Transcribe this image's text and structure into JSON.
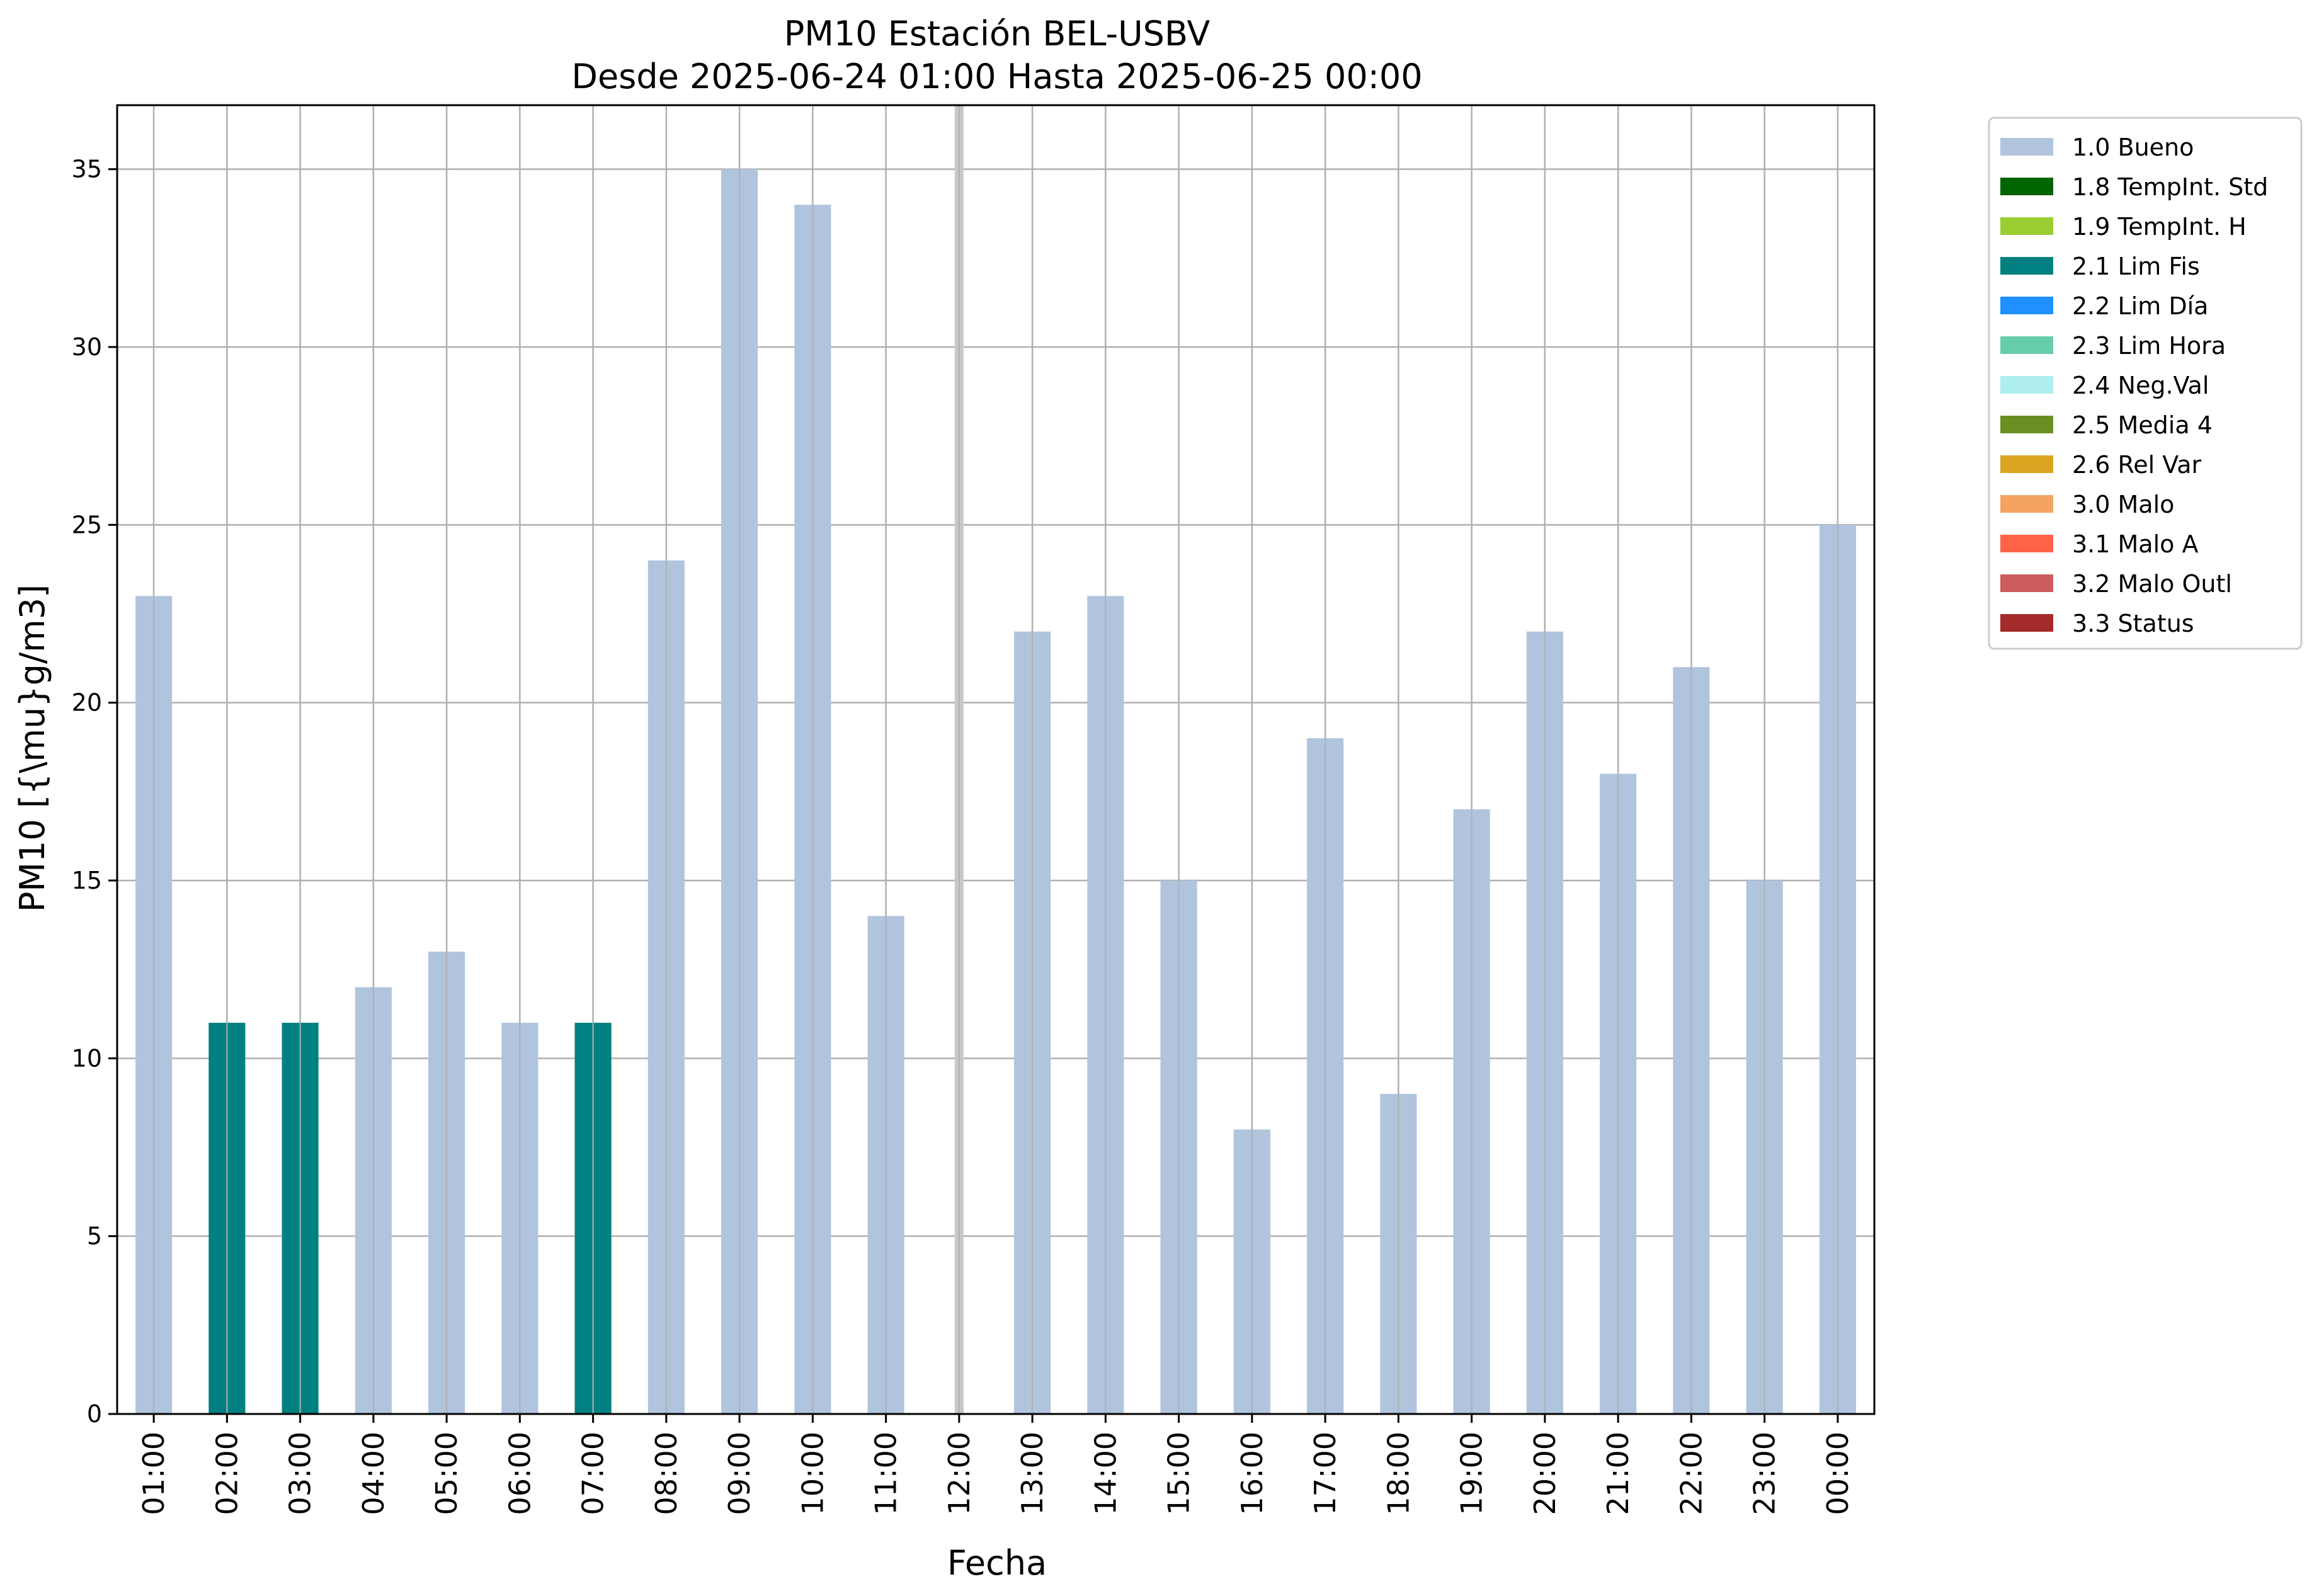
{
  "chart_data": {
    "type": "bar",
    "title": "PM10 Estación BEL-USBV",
    "subtitle": "Desde 2025-06-24 01:00 Hasta 2025-06-25 00:00",
    "xlabel": "Fecha",
    "ylabel": "PM10 [{\\mu}g/m3]",
    "ylim": [
      0,
      36.8
    ],
    "yticks": [
      0,
      5,
      10,
      15,
      20,
      25,
      30,
      35
    ],
    "grid": true,
    "legend_position": "outside-top-right",
    "categories": [
      "01:00",
      "02:00",
      "03:00",
      "04:00",
      "05:00",
      "06:00",
      "07:00",
      "08:00",
      "09:00",
      "10:00",
      "11:00",
      "12:00",
      "13:00",
      "14:00",
      "15:00",
      "16:00",
      "17:00",
      "18:00",
      "19:00",
      "20:00",
      "21:00",
      "22:00",
      "23:00",
      "00:00"
    ],
    "values": [
      23,
      11,
      11,
      12,
      13,
      11,
      11,
      24,
      35,
      34,
      14,
      null,
      22,
      23,
      15,
      8,
      19,
      9,
      17,
      22,
      18,
      21,
      15,
      25
    ],
    "flags": [
      "1.0",
      "2.1",
      "2.1",
      "1.0",
      "1.0",
      "1.0",
      "2.1",
      "1.0",
      "1.0",
      "1.0",
      "1.0",
      null,
      "1.0",
      "1.0",
      "1.0",
      "1.0",
      "1.0",
      "1.0",
      "1.0",
      "1.0",
      "1.0",
      "1.0",
      "1.0",
      "1.0"
    ],
    "missing_marker_category": "12:00",
    "legend": [
      {
        "code": "1.0",
        "label": "1.0 Bueno",
        "color": "#b0c4de"
      },
      {
        "code": "1.8",
        "label": "1.8 TempInt. Std",
        "color": "#006400"
      },
      {
        "code": "1.9",
        "label": "1.9 TempInt. H",
        "color": "#9acd32"
      },
      {
        "code": "2.1",
        "label": "2.1 Lim Fis",
        "color": "#008080"
      },
      {
        "code": "2.2",
        "label": "2.2 Lim Día",
        "color": "#1e90ff"
      },
      {
        "code": "2.3",
        "label": "2.3 Lim Hora",
        "color": "#66cdaa"
      },
      {
        "code": "2.4",
        "label": "2.4 Neg.Val",
        "color": "#afeeee"
      },
      {
        "code": "2.5",
        "label": "2.5 Media 4",
        "color": "#6b8e23"
      },
      {
        "code": "2.6",
        "label": "2.6 Rel Var",
        "color": "#daa520"
      },
      {
        "code": "3.0",
        "label": "3.0 Malo",
        "color": "#f4a460"
      },
      {
        "code": "3.1",
        "label": "3.1 Malo A",
        "color": "#ff6347"
      },
      {
        "code": "3.2",
        "label": "3.2 Malo Outl",
        "color": "#cd5c5c"
      },
      {
        "code": "3.3",
        "label": "3.3 Status",
        "color": "#a52a2a"
      }
    ]
  }
}
